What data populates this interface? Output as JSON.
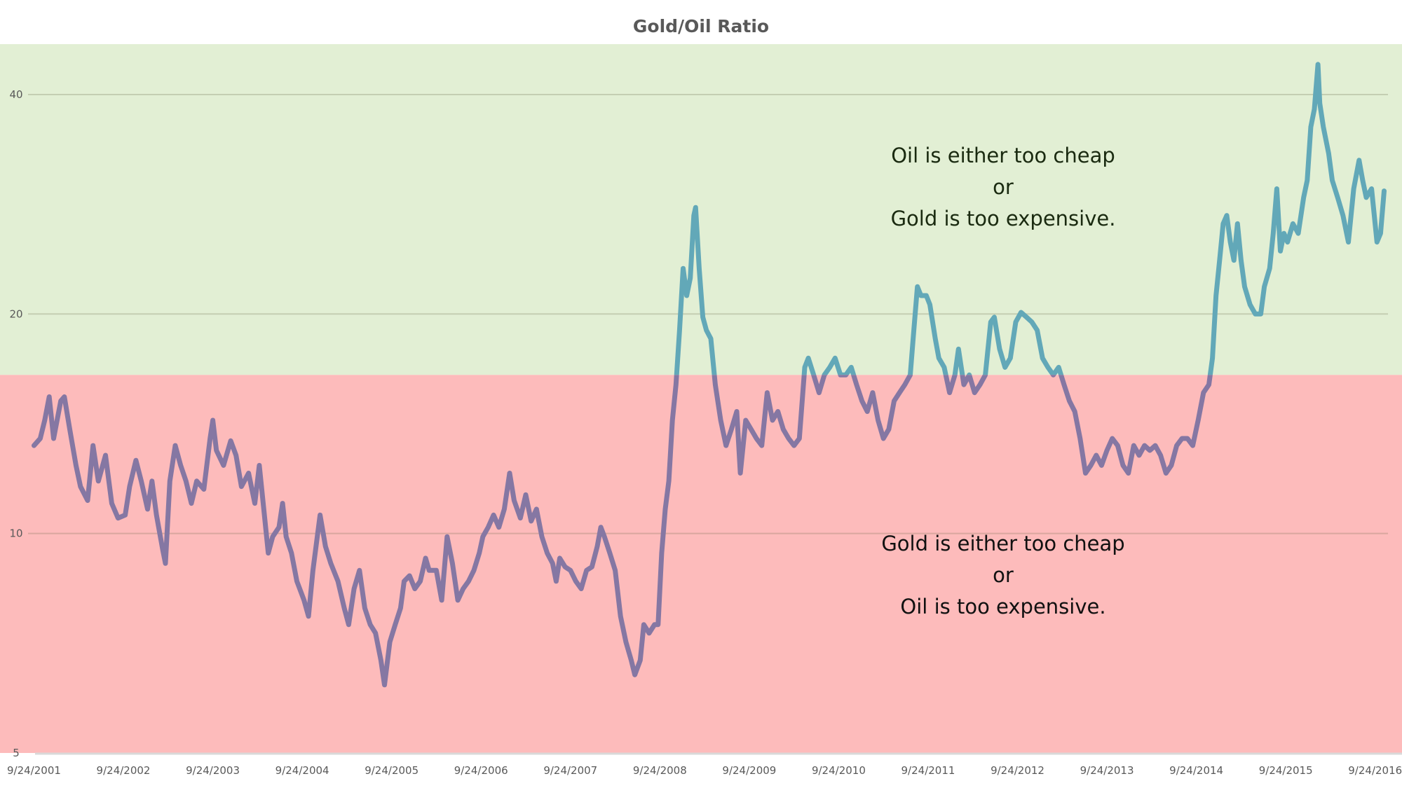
{
  "chart_data": {
    "type": "line",
    "title": "Gold/Oil Ratio",
    "xlabel": "",
    "ylabel": "",
    "y_scale": "log",
    "ylim": [
      5,
      46.9
    ],
    "xlim": [
      2001.35,
      2017.03
    ],
    "y_ticks": [
      5,
      10,
      20,
      40
    ],
    "y_tick_labels": [
      "5",
      "10",
      "20",
      "40"
    ],
    "x_ticks": [
      2001.73,
      2002.73,
      2003.73,
      2004.73,
      2005.73,
      2006.73,
      2007.73,
      2008.73,
      2009.73,
      2010.73,
      2011.73,
      2012.73,
      2013.73,
      2014.73,
      2015.73,
      2016.73
    ],
    "x_tick_labels": [
      "9/24/2001",
      "9/24/2002",
      "9/24/2003",
      "9/24/2004",
      "9/24/2005",
      "9/24/2006",
      "9/24/2007",
      "9/24/2008",
      "9/24/2009",
      "9/24/2010",
      "9/24/2011",
      "9/24/2012",
      "9/24/2013",
      "9/24/2014",
      "9/24/2015",
      "9/24/2016"
    ],
    "grid": true,
    "threshold": 16.5,
    "colors": {
      "above_band": "#e2efd4",
      "below_band": "#fdbbbb",
      "line_above": "#62a8b8",
      "line_below": "#8577a3"
    },
    "annotations": {
      "above": [
        "Oil is either too cheap",
        "or",
        "Gold is too expensive."
      ],
      "below": [
        "Gold is either too cheap",
        "or",
        "Oil is too expensive."
      ]
    },
    "series": [
      {
        "name": "Gold/Oil Ratio",
        "points": [
          [
            1.73,
            13.2
          ],
          [
            1.8,
            13.5
          ],
          [
            1.85,
            14.3
          ],
          [
            1.9,
            15.4
          ],
          [
            1.95,
            13.5
          ],
          [
            2.03,
            15.2
          ],
          [
            2.07,
            15.4
          ],
          [
            2.13,
            13.9
          ],
          [
            2.2,
            12.4
          ],
          [
            2.25,
            11.6
          ],
          [
            2.33,
            11.1
          ],
          [
            2.39,
            13.2
          ],
          [
            2.45,
            11.8
          ],
          [
            2.53,
            12.8
          ],
          [
            2.6,
            11.0
          ],
          [
            2.67,
            10.5
          ],
          [
            2.75,
            10.6
          ],
          [
            2.8,
            11.6
          ],
          [
            2.87,
            12.6
          ],
          [
            2.93,
            11.8
          ],
          [
            3.0,
            10.8
          ],
          [
            3.05,
            11.8
          ],
          [
            3.1,
            10.6
          ],
          [
            3.17,
            9.5
          ],
          [
            3.2,
            9.1
          ],
          [
            3.25,
            11.8
          ],
          [
            3.31,
            13.2
          ],
          [
            3.37,
            12.4
          ],
          [
            3.43,
            11.8
          ],
          [
            3.49,
            11.0
          ],
          [
            3.55,
            11.8
          ],
          [
            3.63,
            11.5
          ],
          [
            3.7,
            13.5
          ],
          [
            3.73,
            14.3
          ],
          [
            3.77,
            13.0
          ],
          [
            3.85,
            12.4
          ],
          [
            3.93,
            13.4
          ],
          [
            3.99,
            12.8
          ],
          [
            4.05,
            11.6
          ],
          [
            4.13,
            12.1
          ],
          [
            4.2,
            11.0
          ],
          [
            4.25,
            12.4
          ],
          [
            4.3,
            10.8
          ],
          [
            4.35,
            9.4
          ],
          [
            4.4,
            9.9
          ],
          [
            4.47,
            10.2
          ],
          [
            4.51,
            11.0
          ],
          [
            4.55,
            9.9
          ],
          [
            4.61,
            9.4
          ],
          [
            4.67,
            8.6
          ],
          [
            4.75,
            8.1
          ],
          [
            4.8,
            7.7
          ],
          [
            4.85,
            8.9
          ],
          [
            4.93,
            10.6
          ],
          [
            4.99,
            9.6
          ],
          [
            5.05,
            9.1
          ],
          [
            5.13,
            8.6
          ],
          [
            5.2,
            7.9
          ],
          [
            5.25,
            7.5
          ],
          [
            5.31,
            8.4
          ],
          [
            5.37,
            8.9
          ],
          [
            5.43,
            7.9
          ],
          [
            5.49,
            7.5
          ],
          [
            5.55,
            7.3
          ],
          [
            5.61,
            6.7
          ],
          [
            5.65,
            6.2
          ],
          [
            5.71,
            7.1
          ],
          [
            5.77,
            7.5
          ],
          [
            5.83,
            7.9
          ],
          [
            5.87,
            8.6
          ],
          [
            5.93,
            8.75
          ],
          [
            5.99,
            8.4
          ],
          [
            6.05,
            8.6
          ],
          [
            6.11,
            9.25
          ],
          [
            6.15,
            8.9
          ],
          [
            6.23,
            8.9
          ],
          [
            6.29,
            8.1
          ],
          [
            6.35,
            9.9
          ],
          [
            6.41,
            9.1
          ],
          [
            6.47,
            8.1
          ],
          [
            6.53,
            8.4
          ],
          [
            6.59,
            8.6
          ],
          [
            6.65,
            8.9
          ],
          [
            6.71,
            9.4
          ],
          [
            6.75,
            9.9
          ],
          [
            6.81,
            10.2
          ],
          [
            6.87,
            10.6
          ],
          [
            6.93,
            10.2
          ],
          [
            6.99,
            10.8
          ],
          [
            7.05,
            12.1
          ],
          [
            7.1,
            11.1
          ],
          [
            7.17,
            10.5
          ],
          [
            7.23,
            11.3
          ],
          [
            7.29,
            10.4
          ],
          [
            7.35,
            10.8
          ],
          [
            7.41,
            9.9
          ],
          [
            7.47,
            9.4
          ],
          [
            7.53,
            9.1
          ],
          [
            7.57,
            8.6
          ],
          [
            7.61,
            9.25
          ],
          [
            7.67,
            9.0
          ],
          [
            7.73,
            8.9
          ],
          [
            7.79,
            8.6
          ],
          [
            7.85,
            8.4
          ],
          [
            7.91,
            8.9
          ],
          [
            7.97,
            9.0
          ],
          [
            8.03,
            9.6
          ],
          [
            8.07,
            10.2
          ],
          [
            8.11,
            9.9
          ],
          [
            8.17,
            9.4
          ],
          [
            8.23,
            8.9
          ],
          [
            8.29,
            7.7
          ],
          [
            8.35,
            7.1
          ],
          [
            8.41,
            6.7
          ],
          [
            8.45,
            6.4
          ],
          [
            8.51,
            6.7
          ],
          [
            8.55,
            7.5
          ],
          [
            8.61,
            7.3
          ],
          [
            8.67,
            7.5
          ],
          [
            8.71,
            7.5
          ],
          [
            8.75,
            9.4
          ],
          [
            8.79,
            10.8
          ],
          [
            8.83,
            11.8
          ],
          [
            8.87,
            14.3
          ],
          [
            8.91,
            16.0
          ],
          [
            8.95,
            19.0
          ],
          [
            8.99,
            23.1
          ],
          [
            9.03,
            21.2
          ],
          [
            9.07,
            22.4
          ],
          [
            9.11,
            27.3
          ],
          [
            9.13,
            28.0
          ],
          [
            9.17,
            23.1
          ],
          [
            9.21,
            19.8
          ],
          [
            9.25,
            19.0
          ],
          [
            9.3,
            18.5
          ],
          [
            9.35,
            16.0
          ],
          [
            9.41,
            14.3
          ],
          [
            9.47,
            13.2
          ],
          [
            9.53,
            13.9
          ],
          [
            9.59,
            14.7
          ],
          [
            9.63,
            12.1
          ],
          [
            9.69,
            14.3
          ],
          [
            9.75,
            13.9
          ],
          [
            9.81,
            13.5
          ],
          [
            9.87,
            13.2
          ],
          [
            9.93,
            15.6
          ],
          [
            9.99,
            14.3
          ],
          [
            10.05,
            14.7
          ],
          [
            10.11,
            13.9
          ],
          [
            10.17,
            13.5
          ],
          [
            10.23,
            13.2
          ],
          [
            10.29,
            13.5
          ],
          [
            10.35,
            16.9
          ],
          [
            10.39,
            17.4
          ],
          [
            10.45,
            16.5
          ],
          [
            10.51,
            15.6
          ],
          [
            10.57,
            16.5
          ],
          [
            10.63,
            16.9
          ],
          [
            10.69,
            17.4
          ],
          [
            10.75,
            16.5
          ],
          [
            10.81,
            16.5
          ],
          [
            10.87,
            16.9
          ],
          [
            10.93,
            16.0
          ],
          [
            10.99,
            15.2
          ],
          [
            11.05,
            14.7
          ],
          [
            11.11,
            15.6
          ],
          [
            11.17,
            14.3
          ],
          [
            11.23,
            13.5
          ],
          [
            11.29,
            13.9
          ],
          [
            11.35,
            15.2
          ],
          [
            11.41,
            15.6
          ],
          [
            11.47,
            16.0
          ],
          [
            11.53,
            16.5
          ],
          [
            11.57,
            19.0
          ],
          [
            11.61,
            21.8
          ],
          [
            11.65,
            21.2
          ],
          [
            11.71,
            21.2
          ],
          [
            11.75,
            20.6
          ],
          [
            11.81,
            18.5
          ],
          [
            11.85,
            17.4
          ],
          [
            11.91,
            16.9
          ],
          [
            11.97,
            15.6
          ],
          [
            12.03,
            16.5
          ],
          [
            12.07,
            17.9
          ],
          [
            12.13,
            16.0
          ],
          [
            12.19,
            16.5
          ],
          [
            12.25,
            15.6
          ],
          [
            12.31,
            16.0
          ],
          [
            12.37,
            16.5
          ],
          [
            12.43,
            19.5
          ],
          [
            12.47,
            19.8
          ],
          [
            12.53,
            17.9
          ],
          [
            12.59,
            16.9
          ],
          [
            12.65,
            17.4
          ],
          [
            12.71,
            19.5
          ],
          [
            12.77,
            20.1
          ],
          [
            12.83,
            19.8
          ],
          [
            12.89,
            19.5
          ],
          [
            12.95,
            19.0
          ],
          [
            13.01,
            17.4
          ],
          [
            13.07,
            16.9
          ],
          [
            13.13,
            16.5
          ],
          [
            13.19,
            16.9
          ],
          [
            13.25,
            16.0
          ],
          [
            13.31,
            15.2
          ],
          [
            13.37,
            14.7
          ],
          [
            13.43,
            13.5
          ],
          [
            13.49,
            12.1
          ],
          [
            13.55,
            12.4
          ],
          [
            13.61,
            12.8
          ],
          [
            13.67,
            12.4
          ],
          [
            13.73,
            13.0
          ],
          [
            13.79,
            13.5
          ],
          [
            13.85,
            13.2
          ],
          [
            13.91,
            12.4
          ],
          [
            13.97,
            12.1
          ],
          [
            14.03,
            13.2
          ],
          [
            14.09,
            12.8
          ],
          [
            14.15,
            13.2
          ],
          [
            14.21,
            13.0
          ],
          [
            14.27,
            13.2
          ],
          [
            14.33,
            12.8
          ],
          [
            14.39,
            12.1
          ],
          [
            14.45,
            12.4
          ],
          [
            14.51,
            13.2
          ],
          [
            14.57,
            13.5
          ],
          [
            14.63,
            13.5
          ],
          [
            14.69,
            13.2
          ],
          [
            14.75,
            14.3
          ],
          [
            14.81,
            15.6
          ],
          [
            14.87,
            16.0
          ],
          [
            14.91,
            17.4
          ],
          [
            14.95,
            21.2
          ],
          [
            14.99,
            23.7
          ],
          [
            15.03,
            26.6
          ],
          [
            15.07,
            27.3
          ],
          [
            15.11,
            25.1
          ],
          [
            15.15,
            23.7
          ],
          [
            15.19,
            26.6
          ],
          [
            15.23,
            23.7
          ],
          [
            15.27,
            21.8
          ],
          [
            15.33,
            20.6
          ],
          [
            15.39,
            20.0
          ],
          [
            15.45,
            20.0
          ],
          [
            15.49,
            21.8
          ],
          [
            15.55,
            23.1
          ],
          [
            15.59,
            25.8
          ],
          [
            15.63,
            29.7
          ],
          [
            15.67,
            24.4
          ],
          [
            15.71,
            25.8
          ],
          [
            15.75,
            25.1
          ],
          [
            15.81,
            26.6
          ],
          [
            15.87,
            25.8
          ],
          [
            15.93,
            28.9
          ],
          [
            15.97,
            30.5
          ],
          [
            16.01,
            36.1
          ],
          [
            16.05,
            38.2
          ],
          [
            16.09,
            44.0
          ],
          [
            16.11,
            38.9
          ],
          [
            16.15,
            36.1
          ],
          [
            16.21,
            33.2
          ],
          [
            16.25,
            30.5
          ],
          [
            16.31,
            28.9
          ],
          [
            16.37,
            27.3
          ],
          [
            16.43,
            25.1
          ],
          [
            16.49,
            29.7
          ],
          [
            16.55,
            32.5
          ],
          [
            16.59,
            30.5
          ],
          [
            16.63,
            28.9
          ],
          [
            16.69,
            29.7
          ],
          [
            16.75,
            25.1
          ],
          [
            16.79,
            25.8
          ],
          [
            16.83,
            29.5
          ]
        ]
      }
    ]
  }
}
